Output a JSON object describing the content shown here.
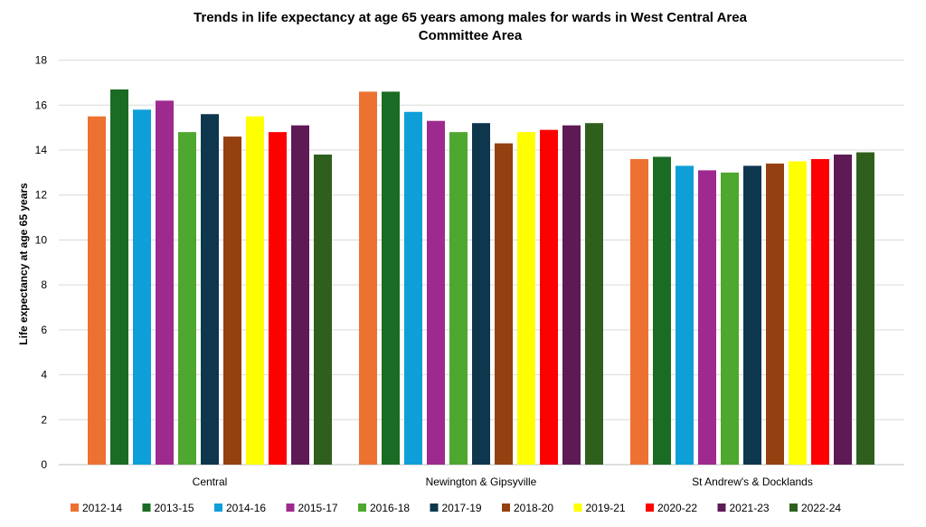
{
  "chart_data": {
    "type": "bar",
    "title": "Trends in life expectancy at  age 65 years among males for wards in West Central Area Committee Area",
    "title_lines": [
      "Trends in life expectancy at  age 65 years among males for wards in West Central Area",
      "Committee Area"
    ],
    "xlabel": "",
    "ylabel": "Life expectancy at  age 65 years",
    "ylim": [
      0,
      18
    ],
    "yticks": [
      0,
      2,
      4,
      6,
      8,
      10,
      12,
      14,
      16,
      18
    ],
    "grid": true,
    "legend_position": "bottom",
    "categories": [
      "Central",
      "Newington & Gipsyville",
      "St Andrew's & Docklands"
    ],
    "series": [
      {
        "name": "2012-14",
        "color": "#ED7231",
        "values": [
          15.5,
          16.6,
          13.6
        ]
      },
      {
        "name": "2013-15",
        "color": "#1A6B23",
        "values": [
          16.7,
          16.6,
          13.7
        ]
      },
      {
        "name": "2014-16",
        "color": "#0E9FD8",
        "values": [
          15.8,
          15.7,
          13.3
        ]
      },
      {
        "name": "2015-17",
        "color": "#9E2A8F",
        "values": [
          16.2,
          15.3,
          13.1
        ]
      },
      {
        "name": "2016-18",
        "color": "#4EA72E",
        "values": [
          14.8,
          14.8,
          13.0
        ]
      },
      {
        "name": "2017-19",
        "color": "#0E374E",
        "values": [
          15.6,
          15.2,
          13.3
        ]
      },
      {
        "name": "2018-20",
        "color": "#954010",
        "values": [
          14.6,
          14.3,
          13.4
        ]
      },
      {
        "name": "2019-21",
        "color": "#FFFF00",
        "values": [
          15.5,
          14.8,
          13.5
        ]
      },
      {
        "name": "2020-22",
        "color": "#FF0000",
        "values": [
          14.8,
          14.9,
          13.6
        ]
      },
      {
        "name": "2021-23",
        "color": "#5E1A55",
        "values": [
          15.1,
          15.1,
          13.8
        ]
      },
      {
        "name": "2022-24",
        "color": "#2F5F1C",
        "values": [
          13.8,
          15.2,
          13.9
        ]
      }
    ]
  }
}
